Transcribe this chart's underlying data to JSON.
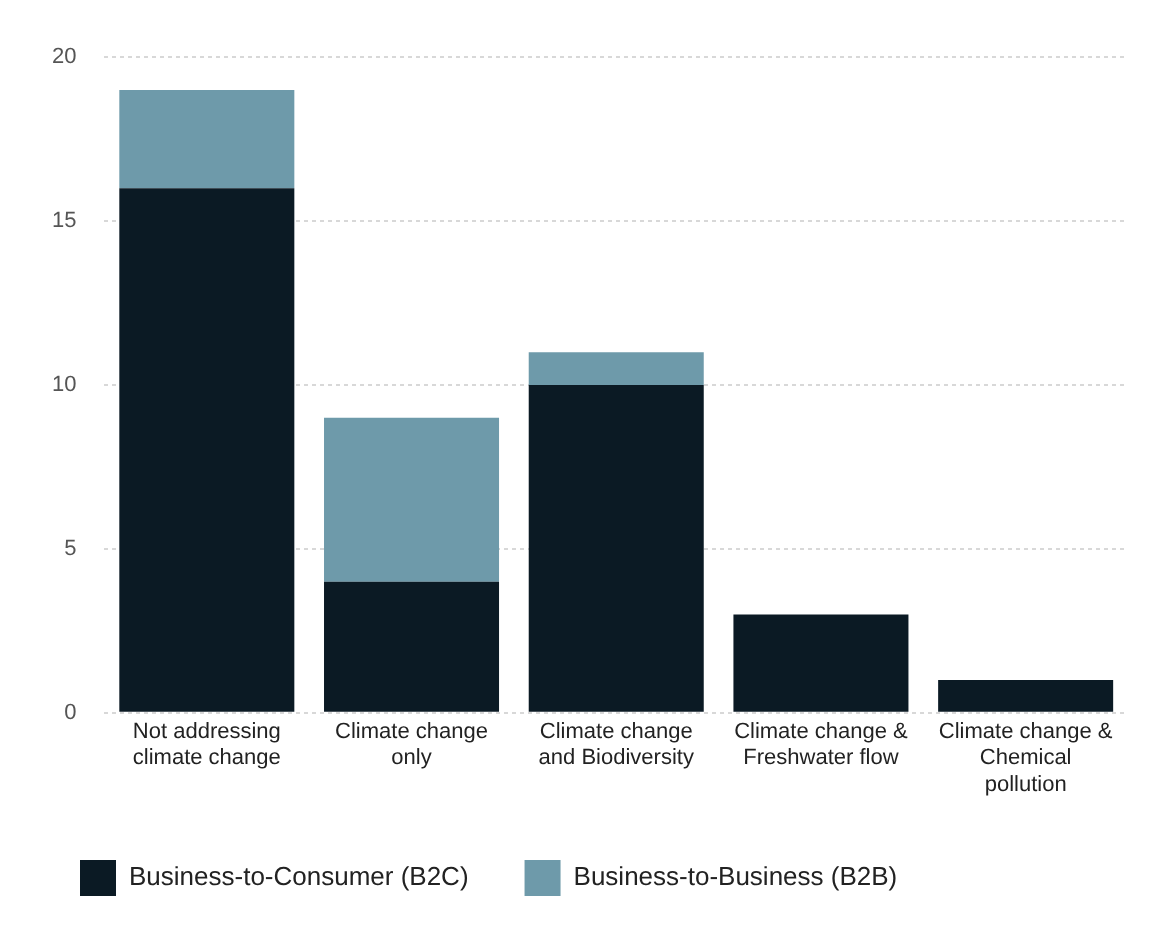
{
  "chart_data": {
    "type": "bar",
    "stacked": true,
    "categories": [
      "Not addressing climate change",
      "Climate change only",
      "Climate change and Biodiversity",
      "Climate change & Freshwater flow",
      "Climate change & Chemical pollution"
    ],
    "series": [
      {
        "name": "Business-to-Consumer (B2C)",
        "color": "#0b1a24",
        "values": [
          16,
          4,
          10,
          3,
          1
        ]
      },
      {
        "name": "Business-to-Business (B2B)",
        "color": "#6e9aaa",
        "values": [
          3,
          5,
          1,
          0,
          0
        ]
      }
    ],
    "ylim": [
      0,
      20
    ],
    "yticks": [
      0,
      5,
      10,
      15,
      20
    ],
    "grid": "y",
    "legend": "bottom"
  }
}
